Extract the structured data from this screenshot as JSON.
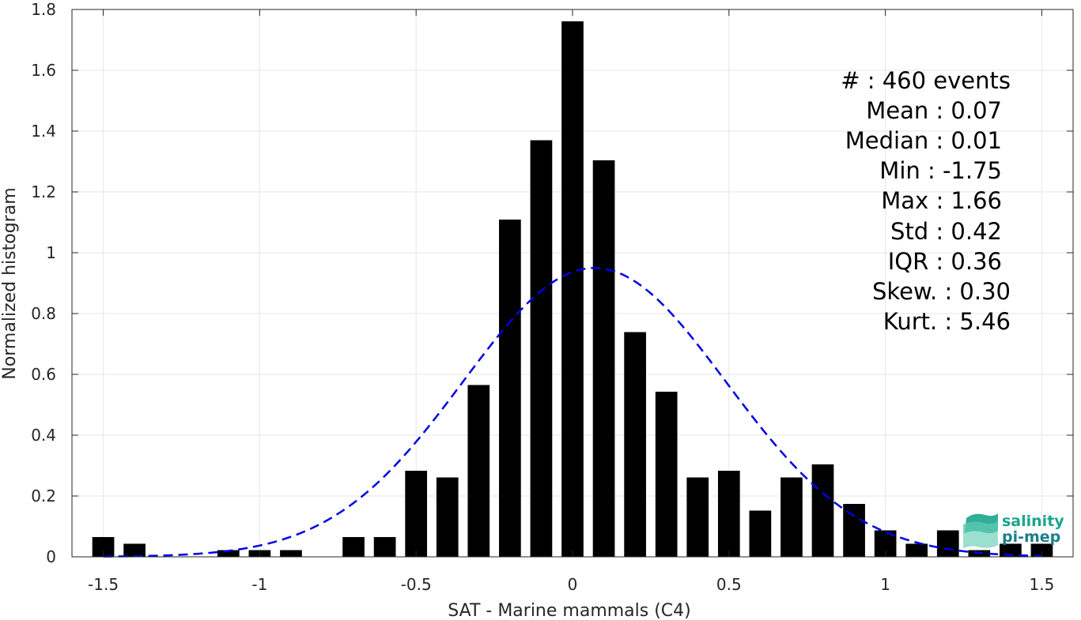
{
  "chart_data": {
    "type": "bar",
    "xlabel": "SAT - Marine mammals (C4)",
    "ylabel": "Normalized histogram",
    "xlim": [
      -1.6,
      1.6
    ],
    "ylim": [
      0,
      1.8
    ],
    "grid": true,
    "xticks": [
      -1.5,
      -1,
      -0.5,
      0,
      0.5,
      1,
      1.5
    ],
    "xtick_labels": [
      "-1.5",
      "-1",
      "-0.5",
      "0",
      "0.5",
      "1",
      "1.5"
    ],
    "yticks": [
      0,
      0.2,
      0.4,
      0.6,
      0.8,
      1,
      1.2,
      1.4,
      1.6,
      1.8
    ],
    "ytick_labels": [
      "0",
      "0.2",
      "0.4",
      "0.6",
      "0.8",
      "1",
      "1.2",
      "1.4",
      "1.6",
      "1.8"
    ],
    "bar_width": 0.07,
    "bar_color": "#000000",
    "bins": [
      {
        "x": -1.5,
        "value": 0.065
      },
      {
        "x": -1.4,
        "value": 0.043
      },
      {
        "x": -1.1,
        "value": 0.022
      },
      {
        "x": -1.0,
        "value": 0.022
      },
      {
        "x": -0.9,
        "value": 0.022
      },
      {
        "x": -0.7,
        "value": 0.065
      },
      {
        "x": -0.6,
        "value": 0.065
      },
      {
        "x": -0.5,
        "value": 0.283
      },
      {
        "x": -0.4,
        "value": 0.261
      },
      {
        "x": -0.3,
        "value": 0.565
      },
      {
        "x": -0.2,
        "value": 1.109
      },
      {
        "x": -0.1,
        "value": 1.37
      },
      {
        "x": 0.0,
        "value": 1.761
      },
      {
        "x": 0.1,
        "value": 1.304
      },
      {
        "x": 0.2,
        "value": 0.739
      },
      {
        "x": 0.3,
        "value": 0.543
      },
      {
        "x": 0.4,
        "value": 0.261
      },
      {
        "x": 0.5,
        "value": 0.283
      },
      {
        "x": 0.6,
        "value": 0.152
      },
      {
        "x": 0.7,
        "value": 0.261
      },
      {
        "x": 0.8,
        "value": 0.304
      },
      {
        "x": 0.9,
        "value": 0.174
      },
      {
        "x": 1.0,
        "value": 0.087
      },
      {
        "x": 1.1,
        "value": 0.043
      },
      {
        "x": 1.2,
        "value": 0.087
      },
      {
        "x": 1.3,
        "value": 0.022
      },
      {
        "x": 1.4,
        "value": 0.043
      },
      {
        "x": 1.5,
        "value": 0.043
      }
    ],
    "fit_curve": {
      "style": "dashed",
      "color": "#0000e6",
      "mean": 0.07,
      "std": 0.42,
      "x_range": [
        -1.5,
        1.5
      ]
    },
    "annotations": [
      "#  : 460 events",
      "Mean : 0.07",
      "Median : 0.01",
      "Min : -1.75",
      "Max : 1.66",
      "Std : 0.42",
      "IQR : 0.36",
      "Skew. : 0.30",
      "Kurt. : 5.46"
    ]
  },
  "logo": {
    "line1": "salinity",
    "line2": "pi-mep",
    "color": "#1aa58c"
  }
}
